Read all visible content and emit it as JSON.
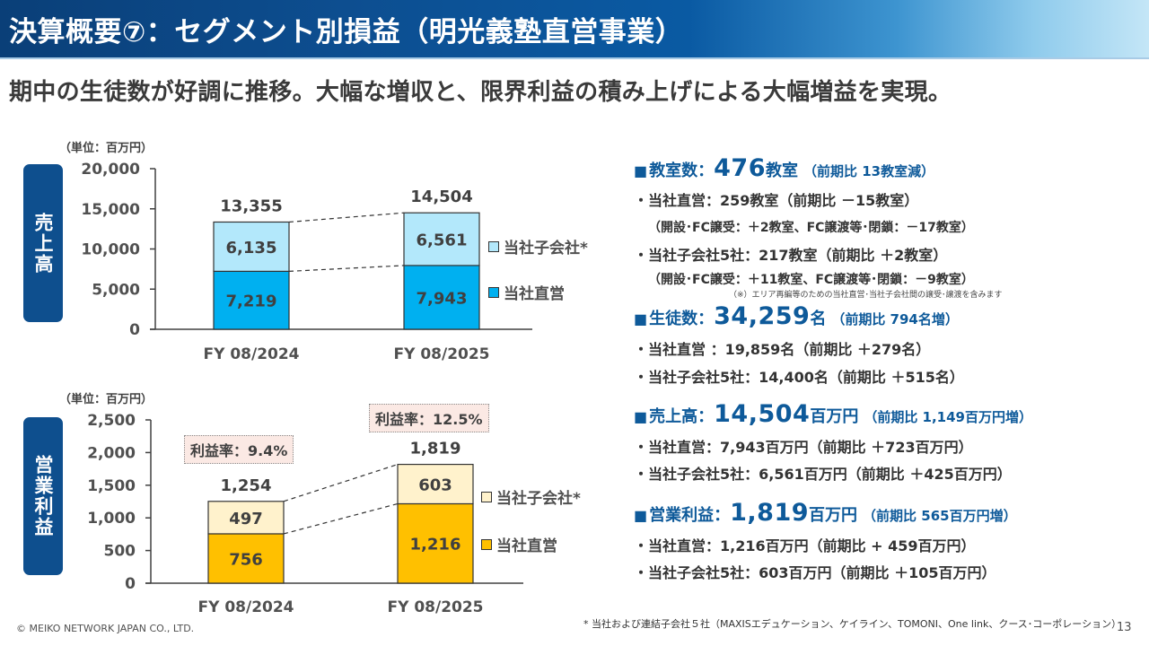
{
  "header": {
    "title": "決算概要⑦：セグメント別損益（明光義塾直営事業）",
    "subtitle": "期中の生徒数が好調に推移。大幅な増収と、限界利益の積み上げによる大幅増益を実現。"
  },
  "colors": {
    "title_bar": "#0d4e90",
    "side_tag": "#0e4f8e",
    "kpi_blue": "#0e5a9a",
    "sales_direct": "#00b0f0",
    "sales_subsidiary": "#b3e8fb",
    "profit_direct": "#ffc000",
    "profit_subsidiary": "#fff2cc",
    "rate_box_bg": "#fbe9e4"
  },
  "chart_data": [
    {
      "type": "bar",
      "stacked": true,
      "side_label": "売上高",
      "unit_label": "（単位：百万円）",
      "categories": [
        "FY 08/2024",
        "FY 08/2025"
      ],
      "series": [
        {
          "name": "当社直営",
          "values": [
            7219,
            7943
          ],
          "labels": [
            "7,219",
            "7,943"
          ]
        },
        {
          "name": "当社子会社*",
          "values": [
            6135,
            6561
          ],
          "labels": [
            "6,135",
            "6,561"
          ]
        }
      ],
      "totals": [
        13355,
        14504
      ],
      "total_labels": [
        "13,355",
        "14,504"
      ],
      "ylim": [
        0,
        20000
      ],
      "yticks": [
        0,
        5000,
        10000,
        15000,
        20000
      ],
      "ytick_labels": [
        "0",
        "5,000",
        "10,000",
        "15,000",
        "20,000"
      ],
      "legend": [
        "当社子会社*",
        "当社直営"
      ],
      "legend_position": "right",
      "grid": false,
      "connector_lines": "dashed"
    },
    {
      "type": "bar",
      "stacked": true,
      "side_label": "営業利益",
      "unit_label": "（単位：百万円）",
      "categories": [
        "FY 08/2024",
        "FY 08/2025"
      ],
      "series": [
        {
          "name": "当社直営",
          "values": [
            756,
            1216
          ],
          "labels": [
            "756",
            "1,216"
          ]
        },
        {
          "name": "当社子会社*",
          "values": [
            497,
            603
          ],
          "labels": [
            "497",
            "603"
          ]
        }
      ],
      "totals": [
        1254,
        1819
      ],
      "total_labels": [
        "1,254",
        "1,819"
      ],
      "annotations": [
        "利益率：9.4%",
        "利益率：12.5%"
      ],
      "ylim": [
        0,
        2500
      ],
      "yticks": [
        0,
        500,
        1000,
        1500,
        2000,
        2500
      ],
      "ytick_labels": [
        "0",
        "500",
        "1,000",
        "1,500",
        "2,000",
        "2,500"
      ],
      "legend": [
        "当社子会社*",
        "当社直営"
      ],
      "legend_position": "right",
      "grid": false,
      "connector_lines": "dashed"
    }
  ],
  "summary": {
    "classrooms": {
      "label": "教室数：",
      "value": "476",
      "unit": "教室",
      "compare": "（前期比 13教室減）",
      "lines": [
        "・当社直営：259教室（前期比 －15教室）",
        "（開設･FC譲受：＋2教室、FC譲渡等･閉鎖：－17教室）",
        "・当社子会社5社：217教室（前期比 ＋2教室）",
        "（開設･FC譲受：＋11教室、FC譲渡等･閉鎖：－9教室）"
      ],
      "note": "（※）エリア再編等のための当社直営･当社子会社間の譲受･譲渡を含みます"
    },
    "students": {
      "label": "生徒数：",
      "value": "34,259",
      "unit": "名",
      "compare": "（前期比 794名増）",
      "lines": [
        "・当社直営 ：19,859名（前期比 ＋279名）",
        "・当社子会社5社：14,400名（前期比 ＋515名）"
      ]
    },
    "sales": {
      "label": "売上高：",
      "value": "14,504",
      "unit": "百万円",
      "compare": "（前期比 1,149百万円増）",
      "lines": [
        "・当社直営：7,943百万円（前期比 ＋723百万円）",
        "・当社子会社5社：6,561百万円（前期比 ＋425百万円）"
      ]
    },
    "profit": {
      "label": "営業利益：",
      "value": "1,819",
      "unit": "百万円",
      "compare": "（前期比 565百万円増）",
      "lines": [
        "・当社直営：1,216百万円（前期比 + 459百万円）",
        "・当社子会社5社：603百万円（前期比 ＋105百万円）"
      ]
    },
    "bullet": "■"
  },
  "footer": {
    "copyright": "© MEIKO NETWORK JAPAN CO., LTD.",
    "note": "* 当社および連結子会社５社（MAXISエデュケーション、ケイライン、TOMONI、One link、クース･コーポレーション）",
    "page": "13"
  }
}
